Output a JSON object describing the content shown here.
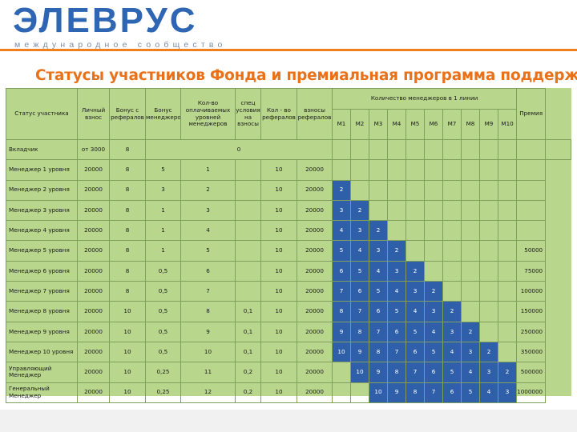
{
  "logo": {
    "text": "ЭЛЕВРУС",
    "subtitle": "международное сообщество"
  },
  "page_title": "Статусы участников Фонда и премиальная программа поддержки",
  "table": {
    "headers": {
      "status": "Статус участника",
      "deposit": "Личный взнос",
      "bonus_ref": "Бонус с рефералов",
      "bonus_mgr": "Бонус менеджеров",
      "paid_levels": "Кол-во оплачиваемых уровней менеджеров",
      "special": "спец условия на взносы",
      "ref_count": "Кол - во рефералов",
      "ref_contrib": "взносы рефералов",
      "managers_group": "Количество менеджеров в 1 линии",
      "bonus": "Премия",
      "m": [
        "M1",
        "M2",
        "M3",
        "M4",
        "M5",
        "M6",
        "M7",
        "M8",
        "M9",
        "M10"
      ]
    },
    "rows": [
      {
        "status": "Вкладчик",
        "deposit": "от 3000",
        "bonus_ref": "8",
        "zero": "0"
      },
      {
        "status": "Менеджер 1 уровня",
        "deposit": "20000",
        "bonus_ref": "8",
        "bonus_mgr": "5",
        "paid_levels": "1",
        "special": "",
        "ref_count": "10",
        "ref_contrib": "20000",
        "m": [
          "",
          "",
          "",
          "",
          "",
          "",
          "",
          "",
          "",
          ""
        ],
        "bonus": ""
      },
      {
        "status": "Менеджер 2 уровня",
        "deposit": "20000",
        "bonus_ref": "8",
        "bonus_mgr": "3",
        "paid_levels": "2",
        "special": "",
        "ref_count": "10",
        "ref_contrib": "20000",
        "m": [
          "2",
          "",
          "",
          "",
          "",
          "",
          "",
          "",
          "",
          ""
        ],
        "bonus": ""
      },
      {
        "status": "Менеджер 3 уровня",
        "deposit": "20000",
        "bonus_ref": "8",
        "bonus_mgr": "1",
        "paid_levels": "3",
        "special": "",
        "ref_count": "10",
        "ref_contrib": "20000",
        "m": [
          "3",
          "2",
          "",
          "",
          "",
          "",
          "",
          "",
          "",
          ""
        ],
        "bonus": ""
      },
      {
        "status": "Менеджер 4 уровня",
        "deposit": "20000",
        "bonus_ref": "8",
        "bonus_mgr": "1",
        "paid_levels": "4",
        "special": "",
        "ref_count": "10",
        "ref_contrib": "20000",
        "m": [
          "4",
          "3",
          "2",
          "",
          "",
          "",
          "",
          "",
          "",
          ""
        ],
        "bonus": ""
      },
      {
        "status": "Менеджер 5 уровня",
        "deposit": "20000",
        "bonus_ref": "8",
        "bonus_mgr": "1",
        "paid_levels": "5",
        "special": "",
        "ref_count": "10",
        "ref_contrib": "20000",
        "m": [
          "5",
          "4",
          "3",
          "2",
          "",
          "",
          "",
          "",
          "",
          ""
        ],
        "bonus": "50000"
      },
      {
        "status": "Менеджер 6 уровня",
        "deposit": "20000",
        "bonus_ref": "8",
        "bonus_mgr": "0,5",
        "paid_levels": "6",
        "special": "",
        "ref_count": "10",
        "ref_contrib": "20000",
        "m": [
          "6",
          "5",
          "4",
          "3",
          "2",
          "",
          "",
          "",
          "",
          ""
        ],
        "bonus": "75000"
      },
      {
        "status": "Менеджер 7 уровня",
        "deposit": "20000",
        "bonus_ref": "8",
        "bonus_mgr": "0,5",
        "paid_levels": "7",
        "special": "",
        "ref_count": "10",
        "ref_contrib": "20000",
        "m": [
          "7",
          "6",
          "5",
          "4",
          "3",
          "2",
          "",
          "",
          "",
          ""
        ],
        "bonus": "100000"
      },
      {
        "status": "Менеджер 8 уровня",
        "deposit": "20000",
        "bonus_ref": "10",
        "bonus_mgr": "0,5",
        "paid_levels": "8",
        "special": "0,1",
        "ref_count": "10",
        "ref_contrib": "20000",
        "m": [
          "8",
          "7",
          "6",
          "5",
          "4",
          "3",
          "2",
          "",
          "",
          ""
        ],
        "bonus": "150000"
      },
      {
        "status": "Менеджер 9 уровня",
        "deposit": "20000",
        "bonus_ref": "10",
        "bonus_mgr": "0,5",
        "paid_levels": "9",
        "special": "0,1",
        "ref_count": "10",
        "ref_contrib": "20000",
        "m": [
          "9",
          "8",
          "7",
          "6",
          "5",
          "4",
          "3",
          "2",
          "",
          ""
        ],
        "bonus": "250000"
      },
      {
        "status": "Менеджер 10 уровня",
        "deposit": "20000",
        "bonus_ref": "10",
        "bonus_mgr": "0,5",
        "paid_levels": "10",
        "special": "0,1",
        "ref_count": "10",
        "ref_contrib": "20000",
        "m": [
          "10",
          "9",
          "8",
          "7",
          "6",
          "5",
          "4",
          "3",
          "2",
          ""
        ],
        "bonus": "350000"
      },
      {
        "status": "Управляющий Менеджер",
        "deposit": "20000",
        "bonus_ref": "10",
        "bonus_mgr": "0,25",
        "paid_levels": "11",
        "special": "0,2",
        "ref_count": "10",
        "ref_contrib": "20000",
        "m": [
          "",
          "10",
          "9",
          "8",
          "7",
          "6",
          "5",
          "4",
          "3",
          "2"
        ],
        "bonus": "500000"
      },
      {
        "status": "Генеральный Менеджер",
        "deposit": "20000",
        "bonus_ref": "10",
        "bonus_mgr": "0,25",
        "paid_levels": "12",
        "special": "0,2",
        "ref_count": "10",
        "ref_contrib": "20000",
        "m": [
          "",
          "",
          "10",
          "9",
          "8",
          "7",
          "6",
          "5",
          "4",
          "3"
        ],
        "bonus": "1000000"
      }
    ]
  },
  "colors": {
    "brand_blue": "#2e66b3",
    "accent_orange": "#f07f1d",
    "table_green": "#b8d78c",
    "cell_blue": "#2f5fa9"
  }
}
